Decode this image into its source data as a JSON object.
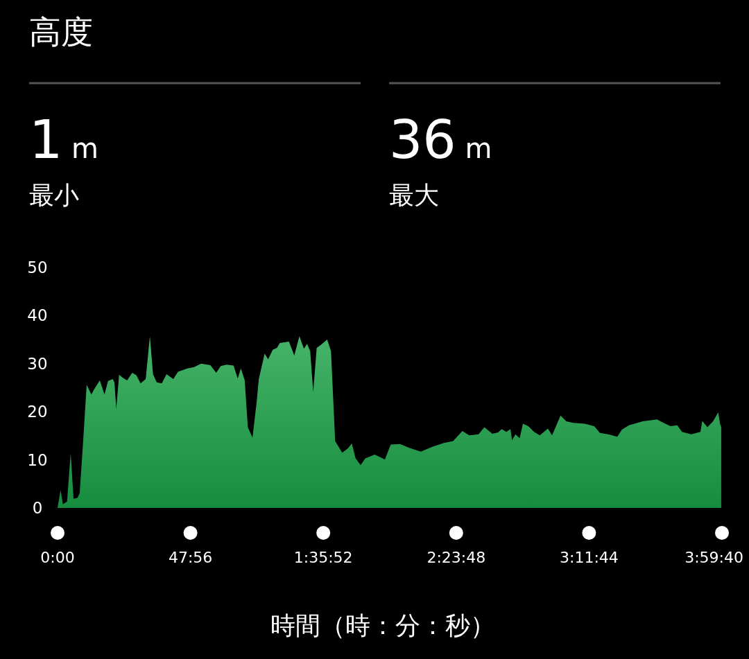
{
  "chart_data": {
    "type": "area",
    "title": "高度",
    "annotations": [
      "1 m",
      "最小",
      "36 m",
      "最大"
    ],
    "xlabel": "時間（時：分：秒）",
    "xlim": [
      0,
      14380
    ],
    "ylim": [
      0,
      50
    ],
    "xticks": [
      {
        "value": 0,
        "label": "0:00"
      },
      {
        "value": 2876,
        "label": "47:56"
      },
      {
        "value": 5752,
        "label": "1:35:52"
      },
      {
        "value": 8628,
        "label": "2:23:48"
      },
      {
        "value": 11504,
        "label": "3:11:44"
      },
      {
        "value": 14380,
        "label": "3:59:40"
      }
    ],
    "yticks": [
      0,
      10,
      20,
      30,
      40,
      50
    ],
    "grid": false,
    "series": [
      {
        "color": "#25a54f",
        "x": [
          0,
          65,
          115,
          205,
          284,
          346,
          432,
          479,
          554,
          630,
          731,
          781,
          914,
          1015,
          1094,
          1195,
          1231,
          1271,
          1332,
          1408,
          1505,
          1616,
          1706,
          1796,
          1908,
          1998,
          2066,
          2146,
          2257,
          2358,
          2506,
          2606,
          2808,
          2956,
          3107,
          3308,
          3434,
          3532,
          3658,
          3809,
          3899,
          3967,
          4050,
          4118,
          4219,
          4309,
          4356,
          4482,
          4558,
          4658,
          4748,
          4810,
          5008,
          5123,
          5234,
          5332,
          5400,
          5468,
          5533,
          5609,
          5684,
          5836,
          5918,
          6008,
          6160,
          6286,
          6368,
          6451,
          6559,
          6660,
          6862,
          7085,
          7211,
          7412,
          7610,
          7862,
          8111,
          8359,
          8561,
          8762,
          8910,
          9112,
          9238,
          9410,
          9536,
          9612,
          9713,
          9803,
          9835,
          9911,
          10001,
          10073,
          10188,
          10314,
          10436,
          10613,
          10703,
          10886,
          11012,
          11164,
          11412,
          11614,
          11740,
          11916,
          12114,
          12215,
          12366,
          12665,
          12974,
          13115,
          13266,
          13414,
          13514,
          13716,
          13914,
          13954,
          14065,
          14188,
          14299,
          14339,
          14364
        ],
        "values": [
          0,
          3.7,
          0.8,
          1.3,
          11.4,
          1.9,
          2.1,
          3.1,
          13.9,
          25.6,
          23.6,
          24.5,
          26.5,
          23.6,
          26.4,
          26.8,
          26.1,
          20.6,
          27.7,
          27.1,
          26.5,
          28.1,
          27.6,
          25.9,
          26.8,
          35.7,
          27.8,
          26.1,
          25.9,
          27.8,
          26.8,
          28.3,
          29.0,
          29.3,
          30.0,
          29.7,
          28.1,
          29.5,
          29.8,
          29.6,
          26.9,
          29.0,
          26.6,
          16.8,
          14.6,
          22.0,
          26.8,
          32.1,
          30.9,
          32.9,
          33.3,
          34.3,
          34.6,
          31.7,
          35.7,
          33.1,
          34.1,
          32.6,
          24.1,
          33.3,
          33.8,
          35.0,
          32.6,
          13.9,
          11.5,
          12.4,
          13.4,
          10.3,
          8.9,
          10.3,
          11.1,
          10.1,
          13.2,
          13.3,
          12.5,
          11.7,
          12.7,
          13.5,
          13.9,
          16.0,
          15.1,
          15.3,
          16.8,
          15.4,
          15.7,
          16.4,
          15.8,
          16.4,
          14.1,
          15.3,
          14.5,
          17.5,
          17.0,
          15.8,
          15.1,
          16.5,
          15.1,
          19.2,
          18.0,
          17.7,
          17.5,
          17.0,
          15.6,
          15.3,
          14.8,
          16.3,
          17.2,
          18.0,
          18.4,
          17.7,
          17.0,
          17.2,
          15.8,
          15.3,
          15.8,
          18.1,
          16.8,
          18.0,
          19.9,
          17.5,
          16.8
        ]
      }
    ]
  }
}
